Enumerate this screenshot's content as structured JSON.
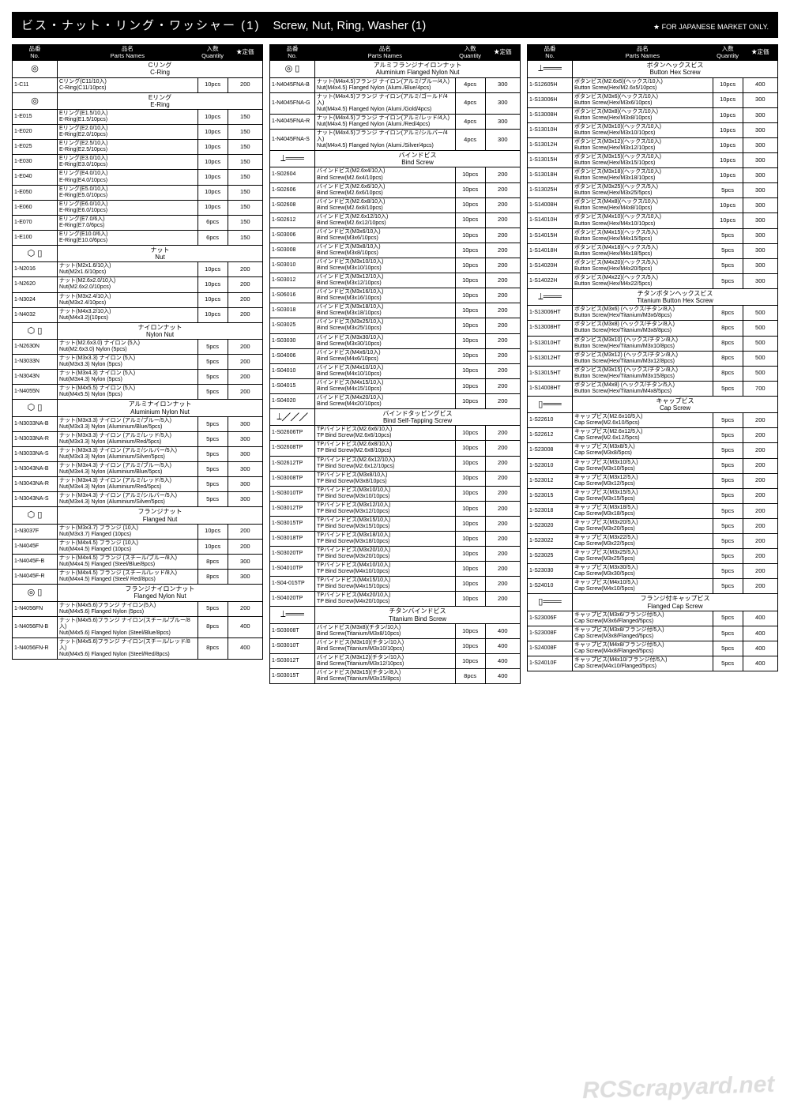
{
  "header": {
    "jp": "ビス・ナット・リング・ワッシャー (1)",
    "en": "Screw, Nut, Ring, Washer (1)",
    "note": "★ FOR JAPANESE MARKET ONLY."
  },
  "cols": {
    "no_jp": "品番",
    "no_en": "No.",
    "name_jp": "品名",
    "name_en": "Parts Names",
    "qty_jp": "入数",
    "qty_en": "Quantity",
    "price": "★定価"
  },
  "watermark": "RCScrapyard.net",
  "column1": [
    {
      "section": {
        "icon": "◎",
        "jp": "Cリング",
        "en": "C-Ring"
      }
    },
    {
      "no": "1-C11",
      "jp": "Cリング(C11/10入)",
      "en": "C-Ring(C11/10pcs)",
      "qty": "10pcs",
      "price": "200"
    },
    {
      "section": {
        "icon": "◎",
        "jp": "Eリング",
        "en": "E-Ring"
      }
    },
    {
      "no": "1-E015",
      "jp": "Eリング(E1.5/10入)",
      "en": "E-Ring(E1.5/10pcs)",
      "qty": "10pcs",
      "price": "150"
    },
    {
      "no": "1-E020",
      "jp": "Eリング(E2.0/10入)",
      "en": "E-Ring(E2.0/10pcs)",
      "qty": "10pcs",
      "price": "150"
    },
    {
      "no": "1-E025",
      "jp": "Eリング(E2.5/10入)",
      "en": "E-Ring(E2.5/10pcs)",
      "qty": "10pcs",
      "price": "150"
    },
    {
      "no": "1-E030",
      "jp": "Eリング(E3.0/10入)",
      "en": "E-Ring(E3.0/10pcs)",
      "qty": "10pcs",
      "price": "150"
    },
    {
      "no": "1-E040",
      "jp": "Eリング(E4.0/10入)",
      "en": "E-Ring(E4.0/10pcs)",
      "qty": "10pcs",
      "price": "150"
    },
    {
      "no": "1-E050",
      "jp": "Eリング(E5.0/10入)",
      "en": "E-Ring(E5.0/10pcs)",
      "qty": "10pcs",
      "price": "150"
    },
    {
      "no": "1-E060",
      "jp": "Eリング(E6.0/10入)",
      "en": "E-Ring(E6.0/10pcs)",
      "qty": "10pcs",
      "price": "150"
    },
    {
      "no": "1-E070",
      "jp": "Eリング(E7.0/6入)",
      "en": "E-Ring(E7.0/6pcs)",
      "qty": "6pcs",
      "price": "150"
    },
    {
      "no": "1-E100",
      "jp": "Eリング(E10.0/6入)",
      "en": "E-Ring(E10.0/6pcs)",
      "qty": "6pcs",
      "price": "150"
    },
    {
      "section": {
        "icon": "⬡ ▯",
        "jp": "ナット",
        "en": "Nut"
      }
    },
    {
      "no": "1-N2016",
      "jp": "ナット(M2x1.6/10入)",
      "en": "Nut(M2x1.6/10pcs)",
      "qty": "10pcs",
      "price": "200"
    },
    {
      "no": "1-N2620",
      "jp": "ナット(M2.6x2.0/10入)",
      "en": "Nut(M2.6x2.0/10pcs)",
      "qty": "10pcs",
      "price": "200"
    },
    {
      "no": "1-N3024",
      "jp": "ナット(M3x2.4/10入)",
      "en": "Nut(M3x2.4/10pcs)",
      "qty": "10pcs",
      "price": "200"
    },
    {
      "no": "1-N4032",
      "jp": "ナット(M4x3.2/10入)",
      "en": "Nut(M4x3.2)(10pcs)",
      "qty": "10pcs",
      "price": "200"
    },
    {
      "section": {
        "icon": "⬡ ▯",
        "jp": "ナイロンナット",
        "en": "Nylon Nut"
      }
    },
    {
      "no": "1-N2630N",
      "jp": "ナット(M2.6x3.0) ナイロン (5入)",
      "en": "Nut(M2.6x3.0) Nylon (5pcs)",
      "qty": "5pcs",
      "price": "200"
    },
    {
      "no": "1-N3033N",
      "jp": "ナット(M3x3.3) ナイロン (5入)",
      "en": "Nut(M3x3.3) Nylon (5pcs)",
      "qty": "5pcs",
      "price": "200"
    },
    {
      "no": "1-N3043N",
      "jp": "ナット(M3x4.3) ナイロン (5入)",
      "en": "Nut(M3x4.3) Nylon (5pcs)",
      "qty": "5pcs",
      "price": "200"
    },
    {
      "no": "1-N4055N",
      "jp": "ナット(M4x5.5) ナイロン (5入)",
      "en": "Nut(M4x5.5) Nylon (5pcs)",
      "qty": "5pcs",
      "price": "200"
    },
    {
      "section": {
        "icon": "⬡ ▯",
        "jp": "アルミナイロンナット",
        "en": "Aluminium Nylon Nut"
      }
    },
    {
      "no": "1-N3033NA-B",
      "jp": "ナット(M3x3.3) ナイロン (アルミ/ブルー/5入)",
      "en": "Nut(M3x3.3) Nylon (Aluminium/Blue/5pcs)",
      "qty": "5pcs",
      "price": "300"
    },
    {
      "no": "1-N3033NA-R",
      "jp": "ナット(M3x3.3) ナイロン (アルミ/レッド/5入)",
      "en": "Nut(M3x3.3) Nylon (Aluminium/Red/5pcs)",
      "qty": "5pcs",
      "price": "300"
    },
    {
      "no": "1-N3033NA-S",
      "jp": "ナット(M3x3.3) ナイロン (アルミ/シルバー/5入)",
      "en": "Nut(M3x3.3) Nylon (Aluminium/Silver/5pcs)",
      "qty": "5pcs",
      "price": "300"
    },
    {
      "no": "1-N3043NA-B",
      "jp": "ナット(M3x4.3) ナイロン (アルミ/ブルー/5入)",
      "en": "Nut(M3x4.3) Nylon (Aluminium/Blue/5pcs)",
      "qty": "5pcs",
      "price": "300"
    },
    {
      "no": "1-N3043NA-R",
      "jp": "ナット(M3x4.3) ナイロン (アルミ/レッド/5入)",
      "en": "Nut(M3x4.3) Nylon (Aluminium/Red/5pcs)",
      "qty": "5pcs",
      "price": "300"
    },
    {
      "no": "1-N3043NA-S",
      "jp": "ナット(M3x4.3) ナイロン (アルミ/シルバー/5入)",
      "en": "Nut(M3x4.3) Nylon (Aluminium/Silver/5pcs)",
      "qty": "5pcs",
      "price": "300"
    },
    {
      "section": {
        "icon": "⬡ ▯",
        "jp": "フランジナット",
        "en": "Flanged Nut"
      }
    },
    {
      "no": "1-N3037F",
      "jp": "ナット(M3x3.7) フランジ (10入)",
      "en": "Nut(M3x3.7) Flanged (10pcs)",
      "qty": "10pcs",
      "price": "200"
    },
    {
      "no": "1-N4045F",
      "jp": "ナット(M4x4.5) フランジ (10入)",
      "en": "Nut(M4x4.5) Flanged (10pcs)",
      "qty": "10pcs",
      "price": "200"
    },
    {
      "no": "1-N4045F-B",
      "jp": "ナット(M4x4.5) フランジ (スチール/ブルー/8入)",
      "en": "Nut(M4x4.5) Flanged (Steel/Blue/8pcs)",
      "qty": "8pcs",
      "price": "300"
    },
    {
      "no": "1-N4045F-R",
      "jp": "ナット(M4x4.5) フランジ (スチール/レッド/8入)",
      "en": "Nut(M4x4.5) Flanged (Steel/ Red/8pcs)",
      "qty": "8pcs",
      "price": "300"
    },
    {
      "section": {
        "icon": "◎ ▯",
        "jp": "フランジナイロンナット",
        "en": "Flanged Nylon Nut"
      }
    },
    {
      "no": "1-N4056FN",
      "jp": "ナット(M4x5.6)フランジ ナイロン(5入)",
      "en": "Nut(M4x5.6) Flanged Nylon (5pcs)",
      "qty": "5pcs",
      "price": "200"
    },
    {
      "no": "1-N4056FN-B",
      "jp": "ナット(M4x5.6)フランジ ナイロン(スチール/ブルー/8入)",
      "en": "Nut(M4x5.6) Flanged Nylon (Steel/Blue/8pcs)",
      "qty": "8pcs",
      "price": "400"
    },
    {
      "no": "1-N4056FN-R",
      "jp": "ナット(M4x5.6)フランジ ナイロン(スチール/レッド/8入)",
      "en": "Nut(M4x5.6) Flanged Nylon (Steel/Red/8pcs)",
      "qty": "8pcs",
      "price": "400"
    }
  ],
  "column2": [
    {
      "section": {
        "icon": "◎ ▯",
        "jp": "アルミフランジナイロンナット",
        "en": "Aluminium Flanged Nylon Nut"
      }
    },
    {
      "no": "1-N4045FNA-B",
      "jp": "ナット(M4x4.5)フランジ ナイロン(アルミ/ブルー/4入)",
      "en": "Nut(M4x4.5) Flanged Nylon (Alumi./Blue/4pcs)",
      "qty": "4pcs",
      "price": "300"
    },
    {
      "no": "1-N4045FNA-G",
      "jp": "ナット(M4x4.5)フランジ ナイロン(アルミ/ゴールド/4入)",
      "en": "Nut(M4x4.5) Flanged Nylon (Alumi./Gold/4pcs)",
      "qty": "4pcs",
      "price": "300"
    },
    {
      "no": "1-N4045FNA-R",
      "jp": "ナット(M4x4.5)フランジ ナイロン(アルミ/レッド/4入)",
      "en": "Nut(M4x4.5) Flanged Nylon (Alumi./Red/4pcs)",
      "qty": "4pcs",
      "price": "300"
    },
    {
      "no": "1-N4045FNA-S",
      "jp": "ナット(M4x4.5)フランジ ナイロン(アルミ/シルバー/4入)",
      "en": "Nut(M4x4.5) Flanged Nylon (Alumi./Silver/4pcs)",
      "qty": "4pcs",
      "price": "300"
    },
    {
      "section": {
        "icon": "⟘═══",
        "jp": "バインドビス",
        "en": "Bind Screw"
      }
    },
    {
      "no": "1-S02604",
      "jp": "バインドビス(M2.6x4/10入)",
      "en": "Bind Screw(M2.6x4/10pcs)",
      "qty": "10pcs",
      "price": "200"
    },
    {
      "no": "1-S02606",
      "jp": "バインドビス(M2.6x6/10入)",
      "en": "Bind Screw(M2.6x6/10pcs)",
      "qty": "10pcs",
      "price": "200"
    },
    {
      "no": "1-S02608",
      "jp": "バインドビス(M2.6x8/10入)",
      "en": "Bind Screw(M2.6x8/10pcs)",
      "qty": "10pcs",
      "price": "200"
    },
    {
      "no": "1-S02612",
      "jp": "バインドビス(M2.6x12/10入)",
      "en": "Bind Screw(M2.6x12/10pcs)",
      "qty": "10pcs",
      "price": "200"
    },
    {
      "no": "1-S03006",
      "jp": "バインドビス(M3x6/10入)",
      "en": "Bind Screw(M3x6/10pcs)",
      "qty": "10pcs",
      "price": "200"
    },
    {
      "no": "1-S03008",
      "jp": "バインドビス(M3x8/10入)",
      "en": "Bind Screw(M3x8/10pcs)",
      "qty": "10pcs",
      "price": "200"
    },
    {
      "no": "1-S03010",
      "jp": "バインドビス(M3x10/10入)",
      "en": "Bind Screw(M3x10/10pcs)",
      "qty": "10pcs",
      "price": "200"
    },
    {
      "no": "1-S03012",
      "jp": "バインドビス(M3x12/10入)",
      "en": "Bind Screw(M3x12/10pcs)",
      "qty": "10pcs",
      "price": "200"
    },
    {
      "no": "1-S06016",
      "jp": "バインドビス(M3x16/10入)",
      "en": "Bind Screw(M3x16/10pcs)",
      "qty": "10pcs",
      "price": "200"
    },
    {
      "no": "1-S03018",
      "jp": "バインドビス(M3x18/10入)",
      "en": "Bind Screw(M3x18/10pcs)",
      "qty": "10pcs",
      "price": "200"
    },
    {
      "no": "1-S03025",
      "jp": "バインドビス(M3x25/10入)",
      "en": "Bind Screw(M3x25/10pcs)",
      "qty": "10pcs",
      "price": "200"
    },
    {
      "no": "1-S03030",
      "jp": "バインドビス(M3x30/10入)",
      "en": "Bind Screw(M3x30/10pcs)",
      "qty": "10pcs",
      "price": "200"
    },
    {
      "no": "1-S04006",
      "jp": "バインドビス(M4x6/10入)",
      "en": "Bind Screw(M4x6/10pcs)",
      "qty": "10pcs",
      "price": "200"
    },
    {
      "no": "1-S04010",
      "jp": "バインドビス(M4x10/10入)",
      "en": "Bind Screw(M4x10/10pcs)",
      "qty": "10pcs",
      "price": "200"
    },
    {
      "no": "1-S04015",
      "jp": "バインドビス(M4x15/10入)",
      "en": "Bind Screw(M4x15/10pcs)",
      "qty": "10pcs",
      "price": "200"
    },
    {
      "no": "1-S04020",
      "jp": "バインドビス(M4x20/10入)",
      "en": "Bind Screw(M4x20/10pcs)",
      "qty": "10pcs",
      "price": "200"
    },
    {
      "section": {
        "icon": "⟘╱╱╱",
        "jp": "バインドタッピングビス",
        "en": "Bind Self-Tapping Screw"
      }
    },
    {
      "no": "1-S02606TP",
      "jp": "TPバインドビス(M2.6x6/10入)",
      "en": "TP Bind Screw(M2.6x6/10pcs)",
      "qty": "10pcs",
      "price": "200"
    },
    {
      "no": "1-S02608TP",
      "jp": "TPバインドビス(M2.6x8/10入)",
      "en": "TP Bind Screw(M2.6x8/10pcs)",
      "qty": "10pcs",
      "price": "200"
    },
    {
      "no": "1-S02612TP",
      "jp": "TPバインドビス(M2.6x12/10入)",
      "en": "TP Bind Screw(M2.6x12/10pcs)",
      "qty": "10pcs",
      "price": "200"
    },
    {
      "no": "1-S03008TP",
      "jp": "TPバインドビス(M3x8/10入)",
      "en": "TP Bind Screw(M3x8/10pcs)",
      "qty": "10pcs",
      "price": "200"
    },
    {
      "no": "1-S03010TP",
      "jp": "TPバインドビス(M3x10/10入)",
      "en": "TP Bind Screw(M3x10/10pcs)",
      "qty": "10pcs",
      "price": "200"
    },
    {
      "no": "1-S03012TP",
      "jp": "TPバインドビス(M3x12/10入)",
      "en": "TP Bind Screw(M3x12/10pcs)",
      "qty": "10pcs",
      "price": "200"
    },
    {
      "no": "1-S03015TP",
      "jp": "TPバインドビス(M3x15/10入)",
      "en": "TP Bind Screw(M3x15/10pcs)",
      "qty": "10pcs",
      "price": "200"
    },
    {
      "no": "1-S03018TP",
      "jp": "TPバインドビス(M3x18/10入)",
      "en": "TP Bind Screw(M3x18/10pcs)",
      "qty": "10pcs",
      "price": "200"
    },
    {
      "no": "1-S03020TP",
      "jp": "TPバインドビス(M3x20/10入)",
      "en": "TP Bind Screw(M3x20/10pcs)",
      "qty": "10pcs",
      "price": "200"
    },
    {
      "no": "1-S04010TP",
      "jp": "TPバインドビス(M4x10/10入)",
      "en": "TP Bind Screw(M4x10/10pcs)",
      "qty": "10pcs",
      "price": "200"
    },
    {
      "no": "1-S04-015TP",
      "jp": "TPバインドビス(M4x15/10入)",
      "en": "TP Bind Screw(M4x15/10pcs)",
      "qty": "10pcs",
      "price": "200"
    },
    {
      "no": "1-S04020TP",
      "jp": "TPバインドビス(M4x20/10入)",
      "en": "TP Bind Screw(M4x20/10pcs)",
      "qty": "10pcs",
      "price": "200"
    },
    {
      "section": {
        "icon": "⟘═══",
        "jp": "チタンバインドビス",
        "en": "Titanium Bind Screw"
      }
    },
    {
      "no": "1-S03008T",
      "jp": "バインドビス(M3x8)(チタン/10入)",
      "en": "Bind Screw(Titanium/M3x8/10pcs)",
      "qty": "10pcs",
      "price": "400"
    },
    {
      "no": "1-S03010T",
      "jp": "バインドビス(M3x10)(チタン/10入)",
      "en": "Bind Screw(Titanium/M3x10/10pcs)",
      "qty": "10pcs",
      "price": "400"
    },
    {
      "no": "1-S03012T",
      "jp": "バインドビス(M3x12)(チタン/10入)",
      "en": "Bind Screw(Titanium/M3x12/10pcs)",
      "qty": "10pcs",
      "price": "400"
    },
    {
      "no": "1-S03015T",
      "jp": "バインドビス(M3x15)(チタン/8入)",
      "en": "Bind Screw(Titanium/M3x15/8pcs)",
      "qty": "8pcs",
      "price": "400"
    }
  ],
  "column3": [
    {
      "section": {
        "icon": "⟘═══",
        "jp": "ボタンヘックスビス",
        "en": "Button Hex Screw"
      }
    },
    {
      "no": "1-S12605H",
      "jp": "ボタンビス(M2.6x5)(ヘックス/10入)",
      "en": "Button Screw(Hex/M2.6x5/10pcs)",
      "qty": "10pcs",
      "price": "400"
    },
    {
      "no": "1-S13006H",
      "jp": "ボタンビス(M3x6)(ヘックス/10入)",
      "en": "Button Screw(Hex/M3x6/10pcs)",
      "qty": "10pcs",
      "price": "300"
    },
    {
      "no": "1-S13008H",
      "jp": "ボタンビス(M3x8)(ヘックス/10入)",
      "en": "Button Screw(Hex/M3x8/10pcs)",
      "qty": "10pcs",
      "price": "300"
    },
    {
      "no": "1-S13010H",
      "jp": "ボタンビス(M3x10)(ヘックス/10入)",
      "en": "Button Screw(Hex/M3x10/10pcs)",
      "qty": "10pcs",
      "price": "300"
    },
    {
      "no": "1-S13012H",
      "jp": "ボタンビス(M3x12)(ヘックス/10入)",
      "en": "Button Screw(Hex/M3x12/10pcs)",
      "qty": "10pcs",
      "price": "300"
    },
    {
      "no": "1-S13015H",
      "jp": "ボタンビス(M3x15)(ヘックス/10入)",
      "en": "Button Screw(Hex/M3x15/10pcs)",
      "qty": "10pcs",
      "price": "300"
    },
    {
      "no": "1-S13018H",
      "jp": "ボタンビス(M3x18)(ヘックス/10入)",
      "en": "Button Screw(Hex/M3x18/10pcs)",
      "qty": "10pcs",
      "price": "300"
    },
    {
      "no": "1-S13025H",
      "jp": "ボタンビス(M3x25)(ヘックス/5入)",
      "en": "Button Screw(Hex/M3x25/5pcs)",
      "qty": "5pcs",
      "price": "300"
    },
    {
      "no": "1-S14008H",
      "jp": "ボタンビス(M4x8)(ヘックス/10入)",
      "en": "Button Screw(Hex/M4x8/10pcs)",
      "qty": "10pcs",
      "price": "300"
    },
    {
      "no": "1-S14010H",
      "jp": "ボタンビス(M4x10)(ヘックス/10入)",
      "en": "Button Screw(Hex/M4x10/10pcs)",
      "qty": "10pcs",
      "price": "300"
    },
    {
      "no": "1-S14015H",
      "jp": "ボタンビス(M4x15)(ヘックス/5入)",
      "en": "Button Screw(Hex/M4x15/5pcs)",
      "qty": "5pcs",
      "price": "300"
    },
    {
      "no": "1-S14018H",
      "jp": "ボタンビス(M4x18)(ヘックス/5入)",
      "en": "Button Screw(Hex/M4x18/5pcs)",
      "qty": "5pcs",
      "price": "300"
    },
    {
      "no": "1-S14020H",
      "jp": "ボタンビス(M4x20)(ヘックス/5入)",
      "en": "Button Screw(Hex/M4x20/5pcs)",
      "qty": "5pcs",
      "price": "300"
    },
    {
      "no": "1-S14022H",
      "jp": "ボタンビス(M4x22)(ヘックス/5入)",
      "en": "Button Screw(Hex/M4x22/5pcs)",
      "qty": "5pcs",
      "price": "300"
    },
    {
      "section": {
        "icon": "⟘═══",
        "jp": "チタンボタンヘックスビス",
        "en": "Titanium Button Hex Screw"
      }
    },
    {
      "no": "1-S13006HT",
      "jp": "ボタンビス(M3x6) (ヘックス/チタン/8入)",
      "en": "Button Screw(Hex/Titanium/M3x6/8pcs)",
      "qty": "8pcs",
      "price": "500"
    },
    {
      "no": "1-S13008HT",
      "jp": "ボタンビス(M3x8) (ヘックス/チタン/8入)",
      "en": "Button Screw(Hex/Titanium/M3x8/8pcs)",
      "qty": "8pcs",
      "price": "500"
    },
    {
      "no": "1-S13010HT",
      "jp": "ボタンビス(M3x10) (ヘックス/チタン/8入)",
      "en": "Button Screw(Hex/Titanium/M3x10/8pcs)",
      "qty": "8pcs",
      "price": "500"
    },
    {
      "no": "1-S13012HT",
      "jp": "ボタンビス(M3x12) (ヘックス/チタン/8入)",
      "en": "Button Screw(Hex/Titanium/M3x12/8pcs)",
      "qty": "8pcs",
      "price": "500"
    },
    {
      "no": "1-S13015HT",
      "jp": "ボタンビス(M3x15) (ヘックス/チタン/8入)",
      "en": "Button Screw(Hex/Titanium/M3x15/8pcs)",
      "qty": "8pcs",
      "price": "500"
    },
    {
      "no": "1-S14008HT",
      "jp": "ボタンビス(M4x8) (ヘックス/チタン/5入)",
      "en": "Button Screw(Hex/Titanium/M4x8/5pcs)",
      "qty": "5pcs",
      "price": "700"
    },
    {
      "section": {
        "icon": "▯═══",
        "jp": "キャップビス",
        "en": "Cap Screw"
      }
    },
    {
      "no": "1-S22610",
      "jp": "キャップビス(M2.6x10/5入)",
      "en": "Cap Screw(M2.6x10/5pcs)",
      "qty": "5pcs",
      "price": "200"
    },
    {
      "no": "1-S22612",
      "jp": "キャップビス(M2.6x12/5入)",
      "en": "Cap Screw(M2.6x12/5pcs)",
      "qty": "5pcs",
      "price": "200"
    },
    {
      "no": "1-S23008",
      "jp": "キャップビス(M3x8/5入)",
      "en": "Cap Screw(M3x8/5pcs)",
      "qty": "5pcs",
      "price": "200"
    },
    {
      "no": "1-S23010",
      "jp": "キャップビス(M3x10/5入)",
      "en": "Cap Screw(M3x10/5pcs)",
      "qty": "5pcs",
      "price": "200"
    },
    {
      "no": "1-S23012",
      "jp": "キャップビス(M3x12/5入)",
      "en": "Cap Screw(M3x12/5pcs)",
      "qty": "5pcs",
      "price": "200"
    },
    {
      "no": "1-S23015",
      "jp": "キャップビス(M3x15/5入)",
      "en": "Cap Screw(M3x15/5pcs)",
      "qty": "5pcs",
      "price": "200"
    },
    {
      "no": "1-S23018",
      "jp": "キャップビス(M3x18/5入)",
      "en": "Cap Screw(M3x18/5pcs)",
      "qty": "5pcs",
      "price": "200"
    },
    {
      "no": "1-S23020",
      "jp": "キャップビス(M3x20/5入)",
      "en": "Cap Screw(M3x20/5pcs)",
      "qty": "5pcs",
      "price": "200"
    },
    {
      "no": "1-S23022",
      "jp": "キャップビス(M3x22/5入)",
      "en": "Cap Screw(M3x22/5pcs)",
      "qty": "5pcs",
      "price": "200"
    },
    {
      "no": "1-S23025",
      "jp": "キャップビス(M3x25/5入)",
      "en": "Cap Screw(M3x25/5pcs)",
      "qty": "5pcs",
      "price": "200"
    },
    {
      "no": "1-S23030",
      "jp": "キャップビス(M3x30/5入)",
      "en": "Cap Screw(M3x30/5pcs)",
      "qty": "5pcs",
      "price": "200"
    },
    {
      "no": "1-S24010",
      "jp": "キャップビス(M4x10/5入)",
      "en": "Cap Screw(M4x10/5pcs)",
      "qty": "5pcs",
      "price": "200"
    },
    {
      "section": {
        "icon": "▯═══",
        "jp": "フランジ付キャップビス",
        "en": "Flanged Cap Screw"
      }
    },
    {
      "no": "1-S23006F",
      "jp": "キャップビス(M3x6/フランジ付/5入)",
      "en": "Cap Screw(M3x6/Flanged/5pcs)",
      "qty": "5pcs",
      "price": "400"
    },
    {
      "no": "1-S23008F",
      "jp": "キャップビス(M3x8/フランジ付/5入)",
      "en": "Cap Screw(M3x8/Flanged/5pcs)",
      "qty": "5pcs",
      "price": "400"
    },
    {
      "no": "1-S24008F",
      "jp": "キャップビス(M4x8/フランジ付/5入)",
      "en": "Cap Screw(M4x8/Flanged/5pcs)",
      "qty": "5pcs",
      "price": "400"
    },
    {
      "no": "1-S24010F",
      "jp": "キャップビス(M4x10/フランジ付/5入)",
      "en": "Cap Screw(M4x10/Flanged/5pcs)",
      "qty": "5pcs",
      "price": "400"
    }
  ]
}
